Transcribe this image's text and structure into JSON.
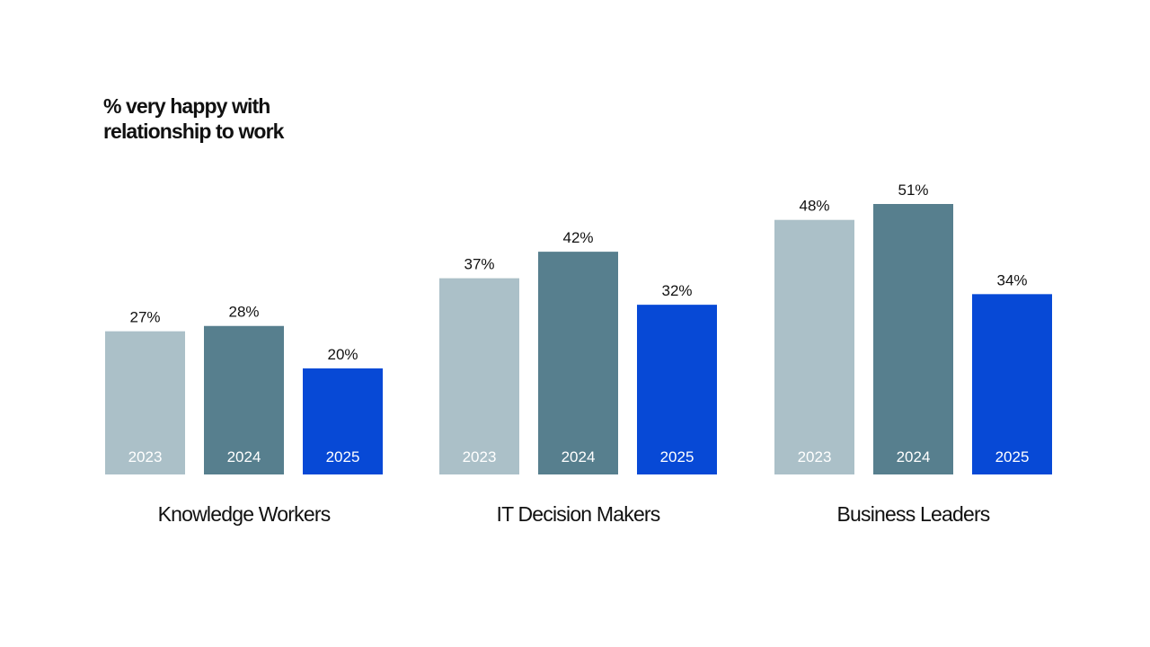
{
  "chart_data": {
    "type": "bar",
    "title_lines": [
      "% very happy with",
      "relationship to work"
    ],
    "categories": [
      "Knowledge Workers",
      "IT Decision Makers",
      "Business Leaders"
    ],
    "series": [
      {
        "name": "2023",
        "color": "#abc0c8",
        "values": [
          27,
          37,
          48
        ]
      },
      {
        "name": "2024",
        "color": "#577f8e",
        "values": [
          28,
          42,
          51
        ]
      },
      {
        "name": "2025",
        "color": "#0749d6",
        "values": [
          20,
          32,
          34
        ]
      }
    ],
    "value_suffix": "%",
    "xlabel": "",
    "ylabel": "",
    "ylim": [
      0,
      51
    ],
    "grid": false,
    "legend": "none"
  }
}
